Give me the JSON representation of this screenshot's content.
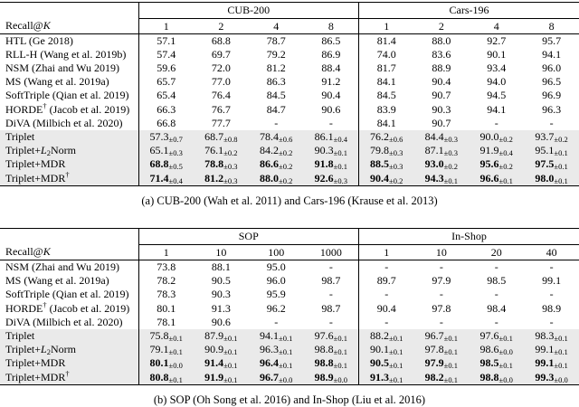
{
  "colors": {
    "row_shade": "#eaeaea",
    "rule": "#000000",
    "text": "#000000",
    "background": "#ffffff"
  },
  "tables": [
    {
      "name": "a",
      "recall_label": "Recall@",
      "recall_k": "K",
      "caption": "(a) CUB-200 (Wah et al. 2011) and Cars-196 (Krause et al. 2013)",
      "groups": [
        {
          "name": "CUB-200",
          "ks": [
            "1",
            "2",
            "4",
            "8"
          ]
        },
        {
          "name": "Cars-196",
          "ks": [
            "1",
            "2",
            "4",
            "8"
          ]
        }
      ],
      "rows": [
        {
          "label": "HTL (Ge 2018)",
          "shaded": false,
          "bold": false,
          "values": [
            "57.1",
            "68.8",
            "78.7",
            "86.5",
            "81.4",
            "88.0",
            "92.7",
            "95.7"
          ]
        },
        {
          "label": "RLL-H (Wang et al. 2019b)",
          "shaded": false,
          "bold": false,
          "values": [
            "57.4",
            "69.7",
            "79.2",
            "86.9",
            "74.0",
            "83.6",
            "90.1",
            "94.1"
          ]
        },
        {
          "label": "NSM (Zhai and Wu 2019)",
          "shaded": false,
          "bold": false,
          "values": [
            "59.6",
            "72.0",
            "81.2",
            "88.4",
            "81.7",
            "88.9",
            "93.4",
            "96.0"
          ]
        },
        {
          "label": "MS (Wang et al. 2019a)",
          "shaded": false,
          "bold": false,
          "values": [
            "65.7",
            "77.0",
            "86.3",
            "91.2",
            "84.1",
            "90.4",
            "94.0",
            "96.5"
          ]
        },
        {
          "label": "SoftTriple (Qian et al. 2019)",
          "shaded": false,
          "bold": false,
          "values": [
            "65.4",
            "76.4",
            "84.5",
            "90.4",
            "84.5",
            "90.7",
            "94.5",
            "96.9"
          ]
        },
        {
          "label": "HORDE† (Jacob et al. 2019)",
          "shaded": false,
          "bold": false,
          "values": [
            "66.3",
            "76.7",
            "84.7",
            "90.6",
            "83.9",
            "90.3",
            "94.1",
            "96.3"
          ]
        },
        {
          "label": "DiVA (Milbich et al. 2020)",
          "shaded": false,
          "bold": false,
          "values": [
            "66.8",
            "77.7",
            "-",
            "-",
            "84.1",
            "90.7",
            "-",
            "-"
          ]
        },
        {
          "label": "Triplet",
          "shaded": true,
          "bold": false,
          "values": [
            "57.3±0.7",
            "68.7±0.8",
            "78.4±0.6",
            "86.1±0.4",
            "76.2±0.6",
            "84.4±0.3",
            "90.0±0.2",
            "93.7±0.2"
          ]
        },
        {
          "label": "Triplet+L2Norm",
          "shaded": true,
          "bold": false,
          "values": [
            "65.1±0.3",
            "76.1±0.2",
            "84.2±0.2",
            "90.3±0.1",
            "79.8±0.3",
            "87.1±0.3",
            "91.9±0.4",
            "95.1±0.1"
          ]
        },
        {
          "label": "Triplet+MDR",
          "shaded": true,
          "bold": true,
          "values": [
            "68.8±0.5",
            "78.8±0.3",
            "86.6±0.2",
            "91.8±0.1",
            "88.5±0.3",
            "93.0±0.2",
            "95.6±0.2",
            "97.5±0.1"
          ]
        },
        {
          "label": "Triplet+MDR†",
          "shaded": true,
          "bold": true,
          "values": [
            "71.4±0.4",
            "81.2±0.3",
            "88.0±0.2",
            "92.6±0.3",
            "90.4±0.2",
            "94.3±0.1",
            "96.6±0.1",
            "98.0±0.1"
          ]
        }
      ]
    },
    {
      "name": "b",
      "recall_label": "Recall@",
      "recall_k": "K",
      "caption": "(b) SOP (Oh Song et al. 2016) and In-Shop (Liu et al. 2016)",
      "groups": [
        {
          "name": "SOP",
          "ks": [
            "1",
            "10",
            "100",
            "1000"
          ]
        },
        {
          "name": "In-Shop",
          "ks": [
            "1",
            "10",
            "20",
            "40"
          ]
        }
      ],
      "rows": [
        {
          "label": "NSM (Zhai and Wu 2019)",
          "shaded": false,
          "bold": false,
          "values": [
            "73.8",
            "88.1",
            "95.0",
            "-",
            "-",
            "-",
            "-",
            "-"
          ]
        },
        {
          "label": "MS (Wang et al. 2019a)",
          "shaded": false,
          "bold": false,
          "values": [
            "78.2",
            "90.5",
            "96.0",
            "98.7",
            "89.7",
            "97.9",
            "98.5",
            "99.1"
          ]
        },
        {
          "label": "SoftTriple (Qian et al. 2019)",
          "shaded": false,
          "bold": false,
          "values": [
            "78.3",
            "90.3",
            "95.9",
            "-",
            "-",
            "-",
            "-",
            "-"
          ]
        },
        {
          "label": "HORDE† (Jacob et al. 2019)",
          "shaded": false,
          "bold": false,
          "values": [
            "80.1",
            "91.3",
            "96.2",
            "98.7",
            "90.4",
            "97.8",
            "98.4",
            "98.9"
          ]
        },
        {
          "label": "DiVA (Milbich et al. 2020)",
          "shaded": false,
          "bold": false,
          "values": [
            "78.1",
            "90.6",
            "-",
            "-",
            "-",
            "-",
            "-",
            "-"
          ]
        },
        {
          "label": "Triplet",
          "shaded": true,
          "bold": false,
          "values": [
            "75.8±0.1",
            "87.9±0.1",
            "94.1±0.1",
            "97.6±0.1",
            "88.2±0.1",
            "96.7±0.1",
            "97.6±0.1",
            "98.3±0.1"
          ]
        },
        {
          "label": "Triplet+L2Norm",
          "shaded": true,
          "bold": false,
          "values": [
            "79.1±0.1",
            "90.9±0.1",
            "96.3±0.1",
            "98.8±0.1",
            "90.1±0.1",
            "97.8±0.1",
            "98.6±0.0",
            "99.1±0.1"
          ]
        },
        {
          "label": "Triplet+MDR",
          "shaded": true,
          "bold": true,
          "values": [
            "80.1±0.0",
            "91.4±0.1",
            "96.4±0.1",
            "98.8±0.1",
            "90.5±0.1",
            "97.9±0.1",
            "98.5±0.1",
            "99.1±0.1"
          ]
        },
        {
          "label": "Triplet+MDR†",
          "shaded": true,
          "bold": true,
          "values": [
            "80.8±0.1",
            "91.9±0.1",
            "96.7±0.0",
            "98.9±0.0",
            "91.3±0.1",
            "98.2±0.1",
            "98.8±0.0",
            "99.3±0.0"
          ]
        }
      ]
    }
  ]
}
